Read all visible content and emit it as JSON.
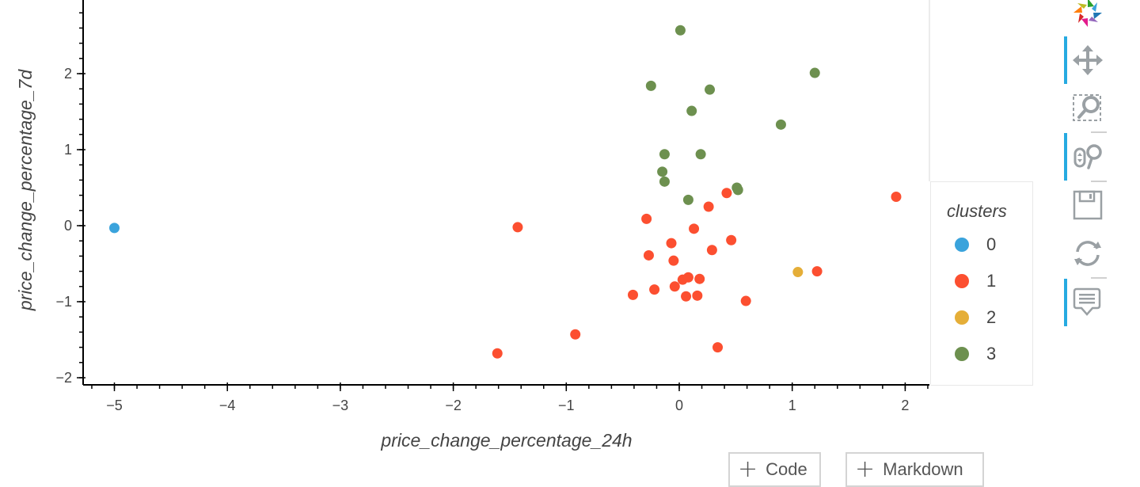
{
  "chart_data": {
    "type": "scatter",
    "title": "",
    "xlabel": "price_change_percentage_24h",
    "ylabel": "price_change_percentage_7d",
    "xlim": [
      -5.28,
      2.21
    ],
    "ylim": [
      -2.1,
      2.97
    ],
    "x_ticks": [
      -5,
      -4,
      -3,
      -2,
      -1,
      0,
      1,
      2
    ],
    "x_tick_labels": [
      "−5",
      "−4",
      "−3",
      "−2",
      "−1",
      "0",
      "1",
      "2"
    ],
    "y_ticks": [
      -2,
      -1,
      0,
      1,
      2
    ],
    "y_tick_labels": [
      "−2",
      "−1",
      "0",
      "1",
      "2"
    ],
    "grid": false,
    "legend": {
      "title": "clusters",
      "position": "right"
    },
    "series": [
      {
        "name": "0",
        "color": "#3aa3dc",
        "x": [
          -5.0
        ],
        "y": [
          -0.03
        ]
      },
      {
        "name": "1",
        "color": "#fc4f30",
        "x": [
          -1.43,
          -0.92,
          -1.61,
          0.42,
          0.26,
          -0.29,
          0.13,
          -0.07,
          0.46,
          0.29,
          -0.27,
          -0.05,
          0.03,
          0.08,
          0.18,
          -0.41,
          -0.22,
          -0.04,
          0.06,
          0.16,
          0.59,
          0.34,
          1.22,
          1.92
        ],
        "y": [
          -0.02,
          -1.43,
          -1.68,
          0.43,
          0.25,
          0.09,
          -0.04,
          -0.23,
          -0.19,
          -0.32,
          -0.39,
          -0.46,
          -0.71,
          -0.68,
          -0.7,
          -0.91,
          -0.84,
          -0.8,
          -0.93,
          -0.92,
          -0.99,
          -1.6,
          -0.6,
          0.38
        ]
      },
      {
        "name": "2",
        "color": "#e5ae38",
        "x": [
          1.05
        ],
        "y": [
          -0.61
        ]
      },
      {
        "name": "3",
        "color": "#6d904f",
        "x": [
          0.01,
          -0.25,
          0.27,
          1.2,
          0.11,
          0.9,
          -0.13,
          0.19,
          -0.15,
          -0.13,
          0.08,
          0.51,
          0.52
        ],
        "y": [
          2.57,
          1.84,
          1.79,
          2.01,
          1.51,
          1.33,
          0.94,
          0.94,
          0.71,
          0.58,
          0.34,
          0.5,
          0.47
        ]
      }
    ]
  },
  "legend": {
    "title": "clusters",
    "items": [
      {
        "label": "0",
        "color": "#3aa3dc"
      },
      {
        "label": "1",
        "color": "#fc4f30"
      },
      {
        "label": "2",
        "color": "#e5ae38"
      },
      {
        "label": "3",
        "color": "#6d904f"
      }
    ]
  },
  "toolbar": {
    "tools": [
      {
        "name": "bokeh-logo",
        "active": false
      },
      {
        "name": "pan",
        "active": true
      },
      {
        "name": "box-zoom",
        "active": false
      },
      {
        "name": "wheel-zoom",
        "active": true
      },
      {
        "name": "save",
        "active": false
      },
      {
        "name": "reset",
        "active": false
      },
      {
        "name": "hover",
        "active": true
      }
    ]
  },
  "notebook": {
    "add_code_label": "Code",
    "add_markdown_label": "Markdown"
  }
}
